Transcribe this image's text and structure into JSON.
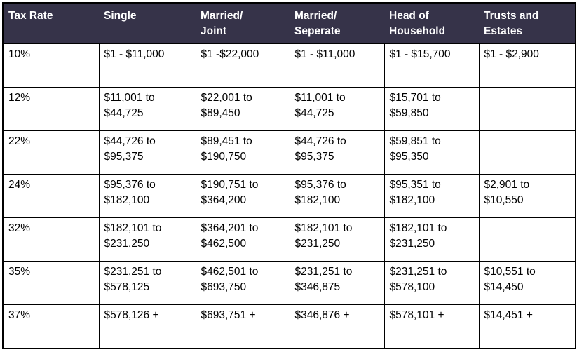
{
  "table": {
    "columns": [
      "Tax Rate",
      "Single",
      "Married/\nJoint",
      "Married/\nSeperate",
      "Head of\nHousehold",
      "Trusts and\nEstates"
    ],
    "rows": [
      {
        "rate": "10%",
        "values": [
          "$1 - $11,000",
          "$1 -$22,000",
          "$1 - $11,000",
          "$1 - $15,700",
          "$1 - $2,900"
        ]
      },
      {
        "rate": "12%",
        "values": [
          "$11,001 to\n$44,725",
          "$22,001 to\n$89,450",
          "$11,001 to\n$44,725",
          "$15,701 to\n$59,850",
          ""
        ]
      },
      {
        "rate": "22%",
        "values": [
          "$44,726 to\n$95,375",
          "$89,451 to\n$190,750",
          "$44,726 to\n$95,375",
          "$59,851 to\n$95,350",
          ""
        ]
      },
      {
        "rate": "24%",
        "values": [
          "$95,376 to\n$182,100",
          "$190,751 to\n$364,200",
          "$95,376 to\n$182,100",
          "$95,351 to\n$182,100",
          "$2,901 to\n$10,550"
        ]
      },
      {
        "rate": "32%",
        "values": [
          "$182,101 to\n$231,250",
          "$364,201 to\n$462,500",
          "$182,101 to\n$231,250",
          "$182,101 to\n$231,250",
          ""
        ]
      },
      {
        "rate": "35%",
        "values": [
          "$231,251 to\n$578,125",
          "$462,501 to\n$693,750",
          "$231,251 to\n$346,875",
          "$231,251 to\n$578,100",
          "$10,551 to\n$14,450"
        ]
      },
      {
        "rate": "37%",
        "values": [
          "$578,126 +",
          "$693,751 +",
          "$346,876 +",
          "$578,101 +",
          "$14,451 +"
        ]
      }
    ]
  },
  "colors": {
    "header_bg": "#363349",
    "header_text": "#ffffff",
    "body_text": "#000000",
    "border": "#000000"
  },
  "chart_data": {
    "type": "table",
    "title": "",
    "columns": [
      "Tax Rate",
      "Single",
      "Married/Joint",
      "Married/Seperate",
      "Head of Household",
      "Trusts and Estates"
    ],
    "rows": [
      [
        "10%",
        "$1 - $11,000",
        "$1 -$22,000",
        "$1 - $11,000",
        "$1 - $15,700",
        "$1 - $2,900"
      ],
      [
        "12%",
        "$11,001 to $44,725",
        "$22,001 to $89,450",
        "$11,001 to $44,725",
        "$15,701 to $59,850",
        ""
      ],
      [
        "22%",
        "$44,726 to $95,375",
        "$89,451 to $190,750",
        "$44,726 to $95,375",
        "$59,851 to $95,350",
        ""
      ],
      [
        "24%",
        "$95,376 to $182,100",
        "$190,751 to $364,200",
        "$95,376 to $182,100",
        "$95,351 to $182,100",
        "$2,901 to $10,550"
      ],
      [
        "32%",
        "$182,101 to $231,250",
        "$364,201 to $462,500",
        "$182,101 to $231,250",
        "$182,101 to $231,250",
        ""
      ],
      [
        "35%",
        "$231,251 to $578,125",
        "$462,501 to $693,750",
        "$231,251 to $346,875",
        "$231,251 to $578,100",
        "$10,551 to $14,450"
      ],
      [
        "37%",
        "$578,126 +",
        "$693,751 +",
        "$346,876 +",
        "$578,101 +",
        "$14,451 +"
      ]
    ]
  }
}
